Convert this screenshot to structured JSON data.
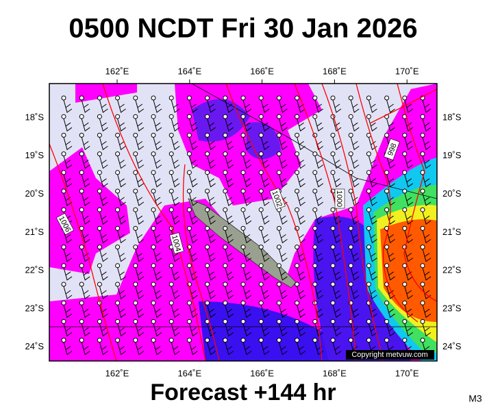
{
  "header": {
    "title": "0500 NCDT Fri 30 Jan 2026"
  },
  "map": {
    "lon_labels": [
      "162˚E",
      "164˚E",
      "166˚E",
      "168˚E",
      "170˚E"
    ],
    "lat_labels": [
      "18˚S",
      "19˚S",
      "20˚S",
      "21˚S",
      "22˚S",
      "23˚S",
      "24˚S"
    ],
    "isobar_labels": [
      "1006",
      "1004",
      "1002",
      "1000",
      "998"
    ],
    "copyright": "Copyright metvuw.com"
  },
  "footer": {
    "forecast": "Forecast +144 hr",
    "model": "M3"
  }
}
